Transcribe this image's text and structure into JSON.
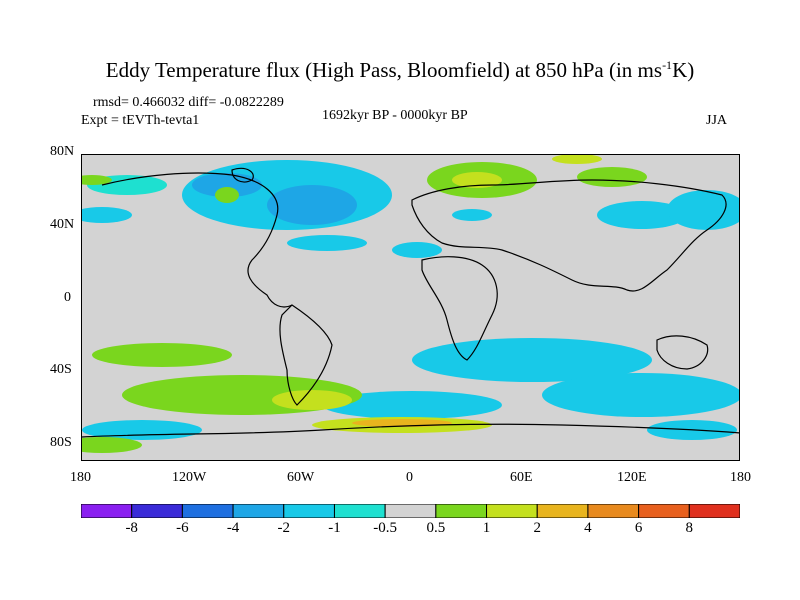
{
  "title": "Eddy Temperature flux (High Pass, Bloomfield) at 850 hPa (in ms",
  "title_sup": "-1",
  "title_end": "K)",
  "stats": {
    "rmsd": "rmsd= 0.466032  diff= -0.0822289"
  },
  "expt": "Expt = tEVTh-tevta1",
  "period": "1692kyr BP - 0000kyr BP",
  "season": "JJA",
  "axes": {
    "y_ticks": [
      "80N",
      "40N",
      "0",
      "40S",
      "80S"
    ],
    "x_ticks": [
      "180",
      "120W",
      "60W",
      "0",
      "60E",
      "120E",
      "180"
    ]
  },
  "colorbar": {
    "labels": [
      "-8",
      "-6",
      "-4",
      "-2",
      "-1",
      "-0.5",
      "0.5",
      "1",
      "2",
      "4",
      "6",
      "8"
    ],
    "colors": [
      "#8a1ff0",
      "#3a2bd8",
      "#1e6fe0",
      "#1ea6e6",
      "#18c9e8",
      "#1ee0d0",
      "#d3d3d3",
      "#7ad61e",
      "#c4e01e",
      "#e8b41e",
      "#e88a1e",
      "#e8601e",
      "#e0301e"
    ]
  },
  "map_colors": {
    "background": "#d3d3d3",
    "cyan": "#18c9e8",
    "blue": "#1ea6e6",
    "teal": "#1ee0d0",
    "green": "#7ad61e",
    "yellow": "#c4e01e",
    "orange": "#e8b41e",
    "coast": "#000000"
  }
}
